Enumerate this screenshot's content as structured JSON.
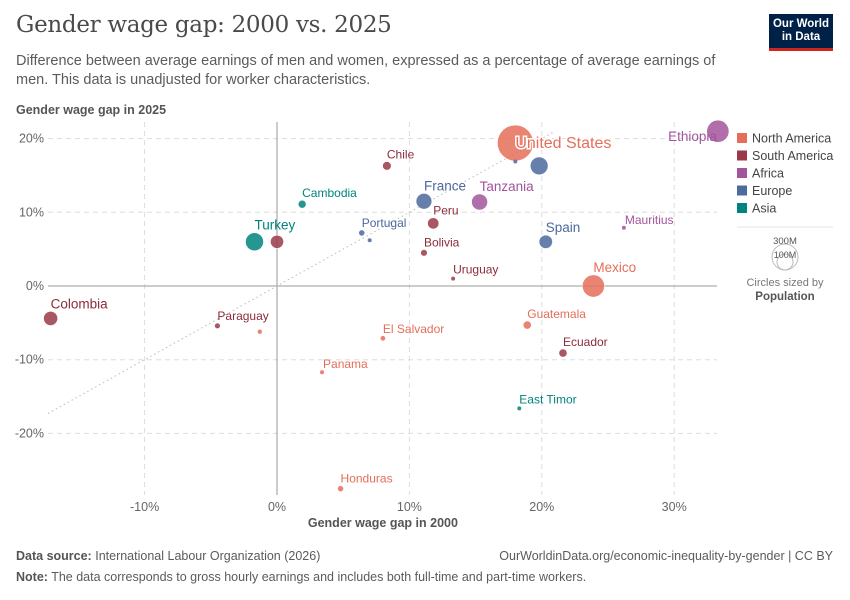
{
  "header": {
    "title": "Gender wage gap: 2000 vs. 2025",
    "subtitle": "Difference between average earnings of men and women, expressed as a percentage of average earnings of men. This data is unadjusted for worker characteristics.",
    "logo": "Our World in Data"
  },
  "footer": {
    "source_label": "Data source:",
    "source": "International Labour Organization (2026)",
    "url": "OurWorldinData.org/economic-inequality-by-gender | CC BY",
    "note_label": "Note:",
    "note": "The data corresponds to gross hourly earnings and includes both full-time and part-time workers."
  },
  "chart_data": {
    "type": "scatter",
    "title": "Gender wage gap: 2000 vs. 2025",
    "xlabel": "Gender wage gap in 2000",
    "ylabel": "Gender wage gap in 2025",
    "xlim": [
      -17.5,
      33.5
    ],
    "ylim": [
      -28.5,
      22
    ],
    "xticks": [
      -10,
      0,
      10,
      20,
      30
    ],
    "yticks": [
      -20,
      -10,
      0,
      10,
      20
    ],
    "tick_format": "%",
    "grid": true,
    "reference_line": "y = x (dotted)",
    "legend": {
      "placement": "right",
      "entries": [
        {
          "name": "North America",
          "color": "#e56e5a"
        },
        {
          "name": "South America",
          "color": "#9a3a48"
        },
        {
          "name": "Africa",
          "color": "#a2559c"
        },
        {
          "name": "Europe",
          "color": "#4c6a9c"
        },
        {
          "name": "Asia",
          "color": "#00847e"
        }
      ]
    },
    "size_legend": {
      "values": [
        "300M",
        "100M"
      ],
      "caption": "Circles sized by",
      "variable": "Population"
    },
    "points": [
      {
        "label": "United States",
        "region": "North America",
        "x": 18.0,
        "y": 19.4,
        "pop": 340,
        "pos": "inside"
      },
      {
        "label": "Ethiopia",
        "region": "Africa",
        "x": 33.3,
        "y": 21.0,
        "pop": 130,
        "pos": "left"
      },
      {
        "label": "Chile",
        "region": "South America",
        "x": 8.3,
        "y": 16.3,
        "pop": 20
      },
      {
        "label": "Cambodia",
        "region": "Asia",
        "x": 1.9,
        "y": 11.1,
        "pop": 17
      },
      {
        "label": "France",
        "region": "Europe",
        "x": 11.1,
        "y": 11.5,
        "pop": 66
      },
      {
        "label": "Tanzania",
        "region": "Africa",
        "x": 15.3,
        "y": 11.4,
        "pop": 68
      },
      {
        "label": "",
        "region": "Europe",
        "x": 19.8,
        "y": 16.3,
        "pop": 84
      },
      {
        "label": "",
        "region": "Europe",
        "x": 18.0,
        "y": 16.9,
        "pop": 1
      },
      {
        "label": "Peru",
        "region": "South America",
        "x": 11.8,
        "y": 8.5,
        "pop": 34
      },
      {
        "label": "Portugal",
        "region": "Europe",
        "x": 6.4,
        "y": 7.2,
        "pop": 10
      },
      {
        "label": "",
        "region": "Europe",
        "x": 7.0,
        "y": 6.2,
        "pop": 1
      },
      {
        "label": "Turkey",
        "region": "Asia",
        "x": -1.7,
        "y": 6.0,
        "pop": 86
      },
      {
        "label": "",
        "region": "South America",
        "x": 0.0,
        "y": 6.0,
        "pop": 46
      },
      {
        "label": "Mauritius",
        "region": "Africa",
        "x": 26.2,
        "y": 7.9,
        "pop": 1.3,
        "pos": "right"
      },
      {
        "label": "Spain",
        "region": "Europe",
        "x": 20.3,
        "y": 6.0,
        "pop": 48
      },
      {
        "label": "Bolivia",
        "region": "South America",
        "x": 11.1,
        "y": 4.5,
        "pop": 12
      },
      {
        "label": "Uruguay",
        "region": "South America",
        "x": 13.3,
        "y": 1.0,
        "pop": 3.5
      },
      {
        "label": "Mexico",
        "region": "North America",
        "x": 23.9,
        "y": 0.0,
        "pop": 130
      },
      {
        "label": "Colombia",
        "region": "South America",
        "x": -17.1,
        "y": -4.4,
        "pop": 53
      },
      {
        "label": "Paraguay",
        "region": "South America",
        "x": -4.5,
        "y": -5.4,
        "pop": 7
      },
      {
        "label": "",
        "region": "North America",
        "x": -1.3,
        "y": -6.2,
        "pop": 5
      },
      {
        "label": "El Salvador",
        "region": "North America",
        "x": 8.0,
        "y": -7.1,
        "pop": 6
      },
      {
        "label": "Guatemala",
        "region": "North America",
        "x": 18.9,
        "y": -5.3,
        "pop": 18
      },
      {
        "label": "Ecuador",
        "region": "South America",
        "x": 21.6,
        "y": -9.1,
        "pop": 18
      },
      {
        "label": "Panama",
        "region": "North America",
        "x": 3.4,
        "y": -11.7,
        "pop": 4.5,
        "pos": "right"
      },
      {
        "label": "East Timor",
        "region": "Asia",
        "x": 18.3,
        "y": -16.6,
        "pop": 1.4
      },
      {
        "label": "Honduras",
        "region": "North America",
        "x": 4.8,
        "y": -27.5,
        "pop": 10
      }
    ]
  }
}
